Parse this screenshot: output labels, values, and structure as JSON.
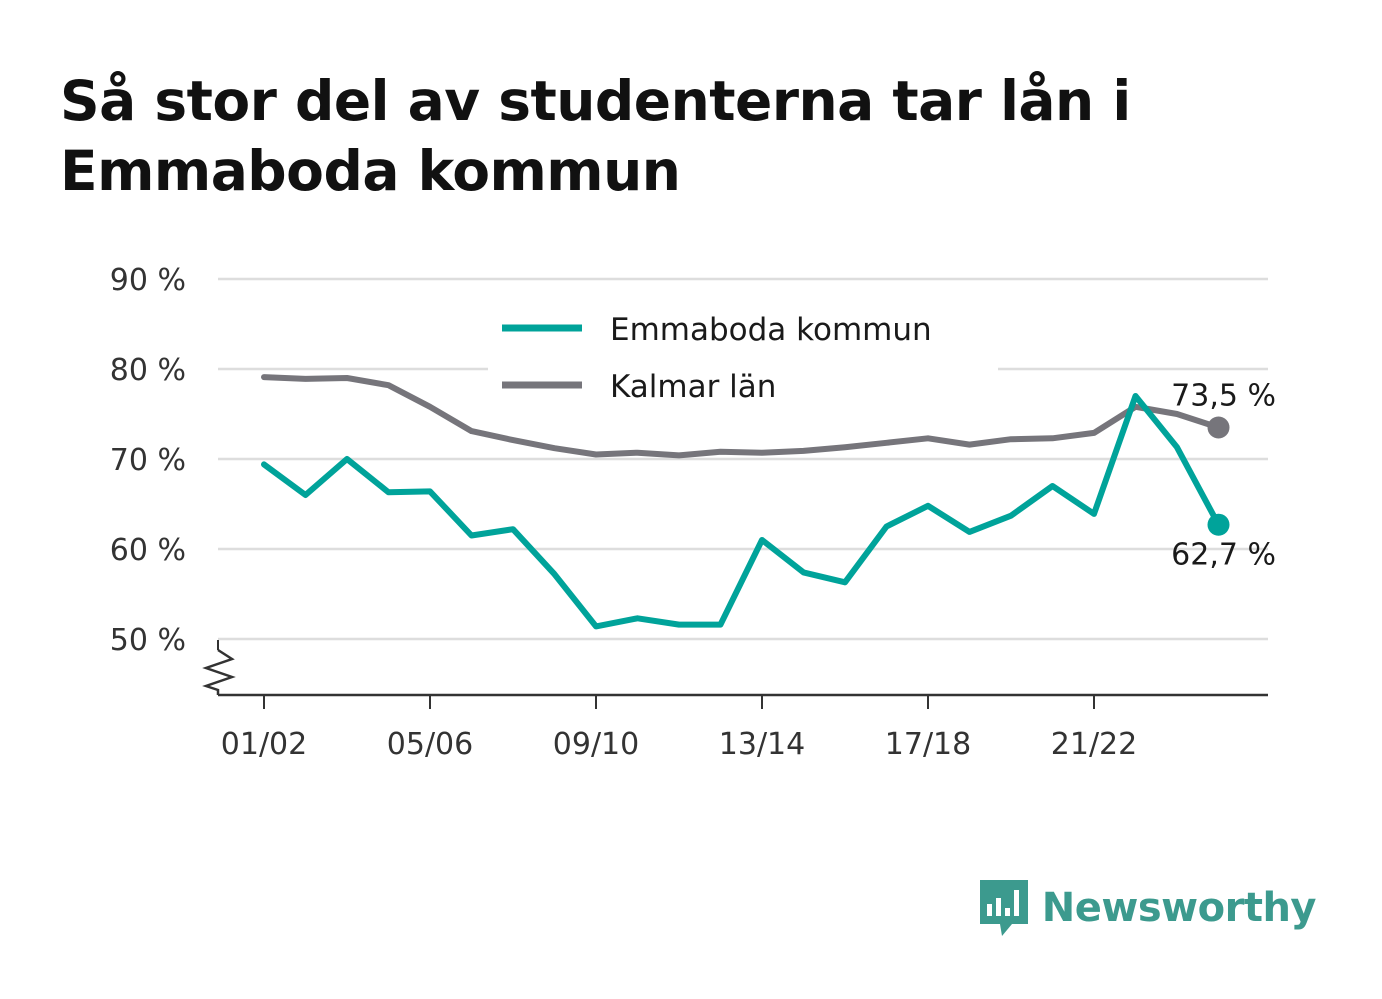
{
  "title": "Så stor del av studenterna tar lån i Emmaboda kommun",
  "brand": {
    "name": "Newsworthy",
    "color": "#3c9a8e",
    "icon": "bar-chart-speech-bubble-icon"
  },
  "chart_data": {
    "type": "line",
    "title": "Så stor del av studenterna tar lån i Emmaboda kommun",
    "x": [
      "01/02",
      "02/03",
      "03/04",
      "04/05",
      "05/06",
      "06/07",
      "07/08",
      "08/09",
      "09/10",
      "10/11",
      "11/12",
      "12/13",
      "13/14",
      "14/15",
      "15/16",
      "16/17",
      "17/18",
      "18/19",
      "19/20",
      "20/21",
      "21/22",
      "22/23",
      "23/24",
      "24/25"
    ],
    "x_tick_labels": [
      "01/02",
      "05/06",
      "09/10",
      "13/14",
      "17/18",
      "21/22"
    ],
    "y_tick_labels": [
      "50 %",
      "60 %",
      "70 %",
      "80 %",
      "90 %"
    ],
    "y_ticks": [
      50,
      60,
      70,
      80,
      90
    ],
    "ylim": [
      43.5,
      90
    ],
    "y_axis_break": true,
    "grid": true,
    "legend_position": "top-center",
    "series": [
      {
        "name": "Emmaboda kommun",
        "color": "#00a39a",
        "values": [
          69.4,
          66.0,
          70.0,
          66.3,
          66.4,
          61.5,
          62.2,
          57.2,
          51.4,
          52.3,
          51.6,
          51.6,
          61.0,
          57.4,
          56.3,
          62.5,
          64.8,
          61.9,
          63.7,
          67.0,
          63.9,
          77.0,
          71.3,
          62.7
        ],
        "end_label": "62,7 %"
      },
      {
        "name": "Kalmar län",
        "color": "#76757b",
        "values": [
          79.1,
          78.9,
          79.0,
          78.2,
          75.8,
          73.1,
          72.1,
          71.2,
          70.5,
          70.7,
          70.4,
          70.8,
          70.7,
          70.9,
          71.3,
          71.8,
          72.3,
          71.6,
          72.2,
          72.3,
          72.9,
          75.8,
          75.0,
          73.5
        ],
        "end_label": "73,5 %"
      }
    ]
  }
}
